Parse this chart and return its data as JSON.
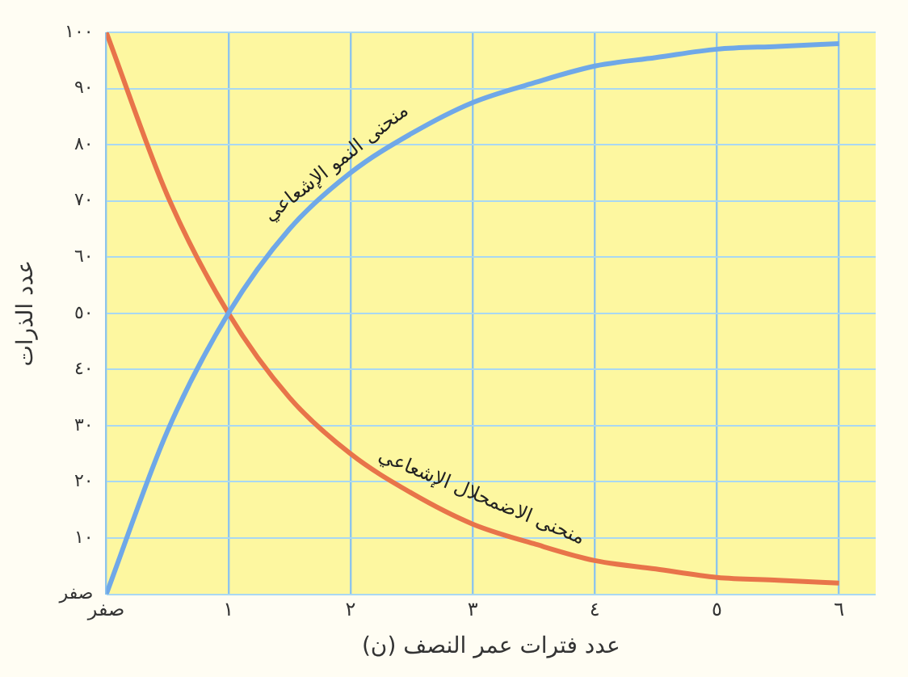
{
  "chart_data": {
    "type": "line",
    "xlabel": "عدد فترات عمر النصف (ن)",
    "ylabel": "عدد الذرات",
    "x": [
      0,
      0.5,
      1,
      1.5,
      2,
      2.5,
      3,
      3.5,
      4,
      4.5,
      5,
      5.5,
      6
    ],
    "series": [
      {
        "name": "منحنى النمو الإشعاعي",
        "color": "#6fa8e8",
        "values": [
          0,
          29,
          50,
          65,
          75,
          82,
          87.5,
          91,
          94,
          95.5,
          97,
          97.5,
          98
        ]
      },
      {
        "name": "منحنى الاضمحلال الإشعاعي",
        "color": "#e8744a",
        "values": [
          100,
          71,
          50,
          35,
          25,
          18,
          12.5,
          9,
          6,
          4.5,
          3,
          2.5,
          2
        ]
      }
    ],
    "xlim": [
      0,
      6.3
    ],
    "ylim": [
      0,
      100
    ],
    "xticks": [
      {
        "value": 0,
        "label": "صفر"
      },
      {
        "value": 1,
        "label": "١"
      },
      {
        "value": 2,
        "label": "٢"
      },
      {
        "value": 3,
        "label": "٣"
      },
      {
        "value": 4,
        "label": "٤"
      },
      {
        "value": 5,
        "label": "٥"
      },
      {
        "value": 6,
        "label": "٦"
      }
    ],
    "yticks": [
      {
        "value": 0,
        "label": "صفر"
      },
      {
        "value": 10,
        "label": "١٠"
      },
      {
        "value": 20,
        "label": "٢٠"
      },
      {
        "value": 30,
        "label": "٣٠"
      },
      {
        "value": 40,
        "label": "٤٠"
      },
      {
        "value": 50,
        "label": "٥٠"
      },
      {
        "value": 60,
        "label": "٦٠"
      },
      {
        "value": 70,
        "label": "٧٠"
      },
      {
        "value": 80,
        "label": "٨٠"
      },
      {
        "value": 90,
        "label": "٩٠"
      },
      {
        "value": 100,
        "label": "١٠٠"
      }
    ],
    "grid": true,
    "legend": false,
    "marker": "none",
    "line_style": "solid"
  }
}
